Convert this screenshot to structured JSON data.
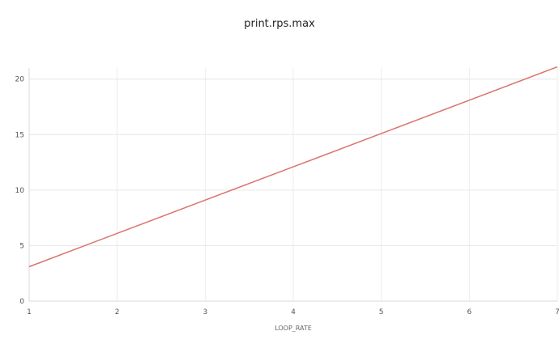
{
  "chart_data": {
    "type": "line",
    "title": "print.rps.max",
    "xlabel": "LOOP_RATE",
    "ylabel": "",
    "xlim": [
      1,
      7
    ],
    "ylim": [
      0,
      21
    ],
    "x_ticks": [
      "1",
      "2",
      "3",
      "4",
      "5",
      "6",
      "7"
    ],
    "y_ticks": [
      "0",
      "5",
      "10",
      "15",
      "20"
    ],
    "grid": true,
    "series": [
      {
        "color": "#d9736d",
        "x": [
          1,
          2,
          3,
          4,
          5,
          6,
          7
        ],
        "y": [
          3.1,
          6.1,
          9.1,
          12.1,
          15.1,
          18.1,
          21.1
        ]
      }
    ]
  }
}
